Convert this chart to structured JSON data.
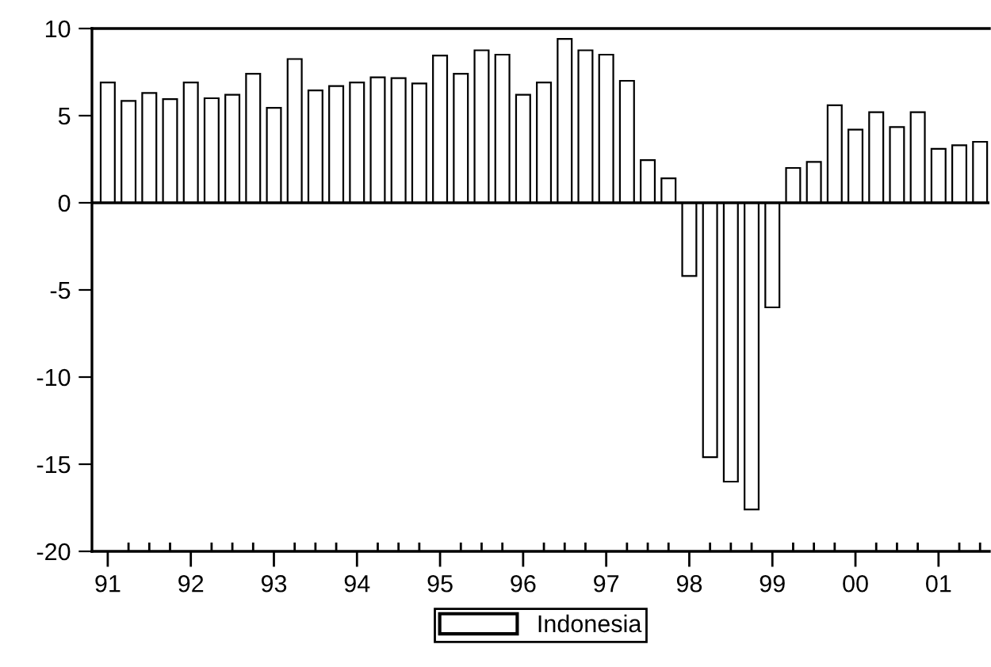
{
  "chart_data": {
    "type": "bar",
    "categories": [
      "91",
      null,
      null,
      null,
      "92",
      null,
      null,
      null,
      "93",
      null,
      null,
      null,
      "94",
      null,
      null,
      null,
      "95",
      null,
      null,
      null,
      "96",
      null,
      null,
      null,
      "97",
      null,
      null,
      null,
      "98",
      null,
      null,
      null,
      "99",
      null,
      null,
      null,
      "00",
      null,
      null,
      null,
      "01",
      null,
      null
    ],
    "series": [
      {
        "name": "Indonesia",
        "color": "#ffffff",
        "values": [
          6.9,
          5.85,
          6.3,
          5.95,
          6.9,
          6.0,
          6.2,
          7.4,
          5.45,
          8.25,
          6.45,
          6.7,
          6.9,
          7.2,
          7.15,
          6.85,
          8.45,
          7.4,
          8.75,
          8.5,
          6.2,
          6.9,
          9.4,
          8.75,
          8.5,
          7.0,
          2.45,
          1.4,
          -4.2,
          -14.6,
          -16.0,
          -17.6,
          -6.0,
          2.0,
          2.35,
          5.6,
          4.2,
          5.2,
          4.35,
          5.2,
          3.1,
          3.3,
          3.5
        ]
      }
    ],
    "ylim": [
      -20,
      10
    ],
    "yticks": [
      -20,
      -15,
      -10,
      -5,
      0,
      5,
      10
    ],
    "ref_lines": [
      {
        "axis": "y",
        "value": 0,
        "color": "#000000"
      }
    ],
    "legend": "bottom",
    "grid": false
  }
}
